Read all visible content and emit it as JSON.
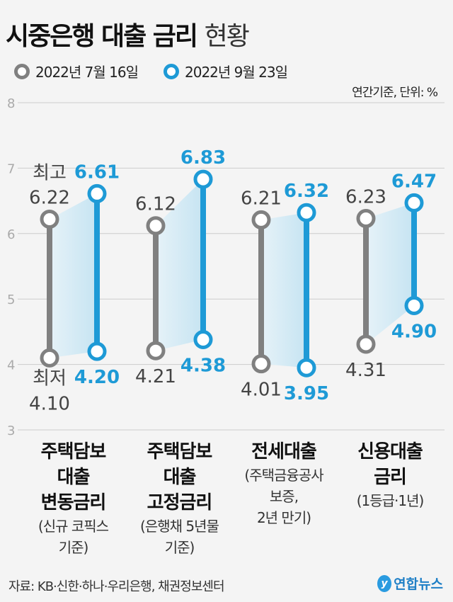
{
  "title": {
    "bold": "시중은행 대출 금리",
    "light": "현황"
  },
  "unit": "연간기준, 단위: %",
  "source": "자료: KB·신한·하나·우리은행, 채권정보센터",
  "logo": {
    "text": "연합뉴스",
    "mark": "y"
  },
  "colors": {
    "gray": "#808080",
    "blue": "#1e9ad6",
    "band": "#cfe8f4"
  },
  "chart_data": {
    "type": "range",
    "ylim": [
      3,
      8
    ],
    "yticks": [
      "3",
      "4",
      "5",
      "6",
      "7",
      "8"
    ],
    "series": [
      {
        "name": "2022년 7월 16일",
        "color": "#808080"
      },
      {
        "name": "2022년 9월 23일",
        "color": "#1e9ad6"
      }
    ],
    "annotations": {
      "high": "최고",
      "low": "최저"
    },
    "categories": [
      {
        "main": "주택담보\n대출\n변동금리",
        "sub": "(신규 코픽스\n기준)",
        "jul": {
          "high": 6.22,
          "low": 4.1
        },
        "sep": {
          "high": 6.61,
          "low": 4.2
        }
      },
      {
        "main": "주택담보\n대출\n고정금리",
        "sub": "(은행채 5년물\n기준)",
        "jul": {
          "high": 6.12,
          "low": 4.21
        },
        "sep": {
          "high": 6.83,
          "low": 4.38
        }
      },
      {
        "main": "전세대출",
        "sub": "(주택금융공사\n보증,\n2년 만기)",
        "jul": {
          "high": 6.21,
          "low": 4.01
        },
        "sep": {
          "high": 6.32,
          "low": 3.95
        }
      },
      {
        "main": "신용대출\n금리",
        "sub": "(1등급·1년)",
        "jul": {
          "high": 6.23,
          "low": 4.31
        },
        "sep": {
          "high": 6.47,
          "low": 4.9
        }
      }
    ]
  }
}
